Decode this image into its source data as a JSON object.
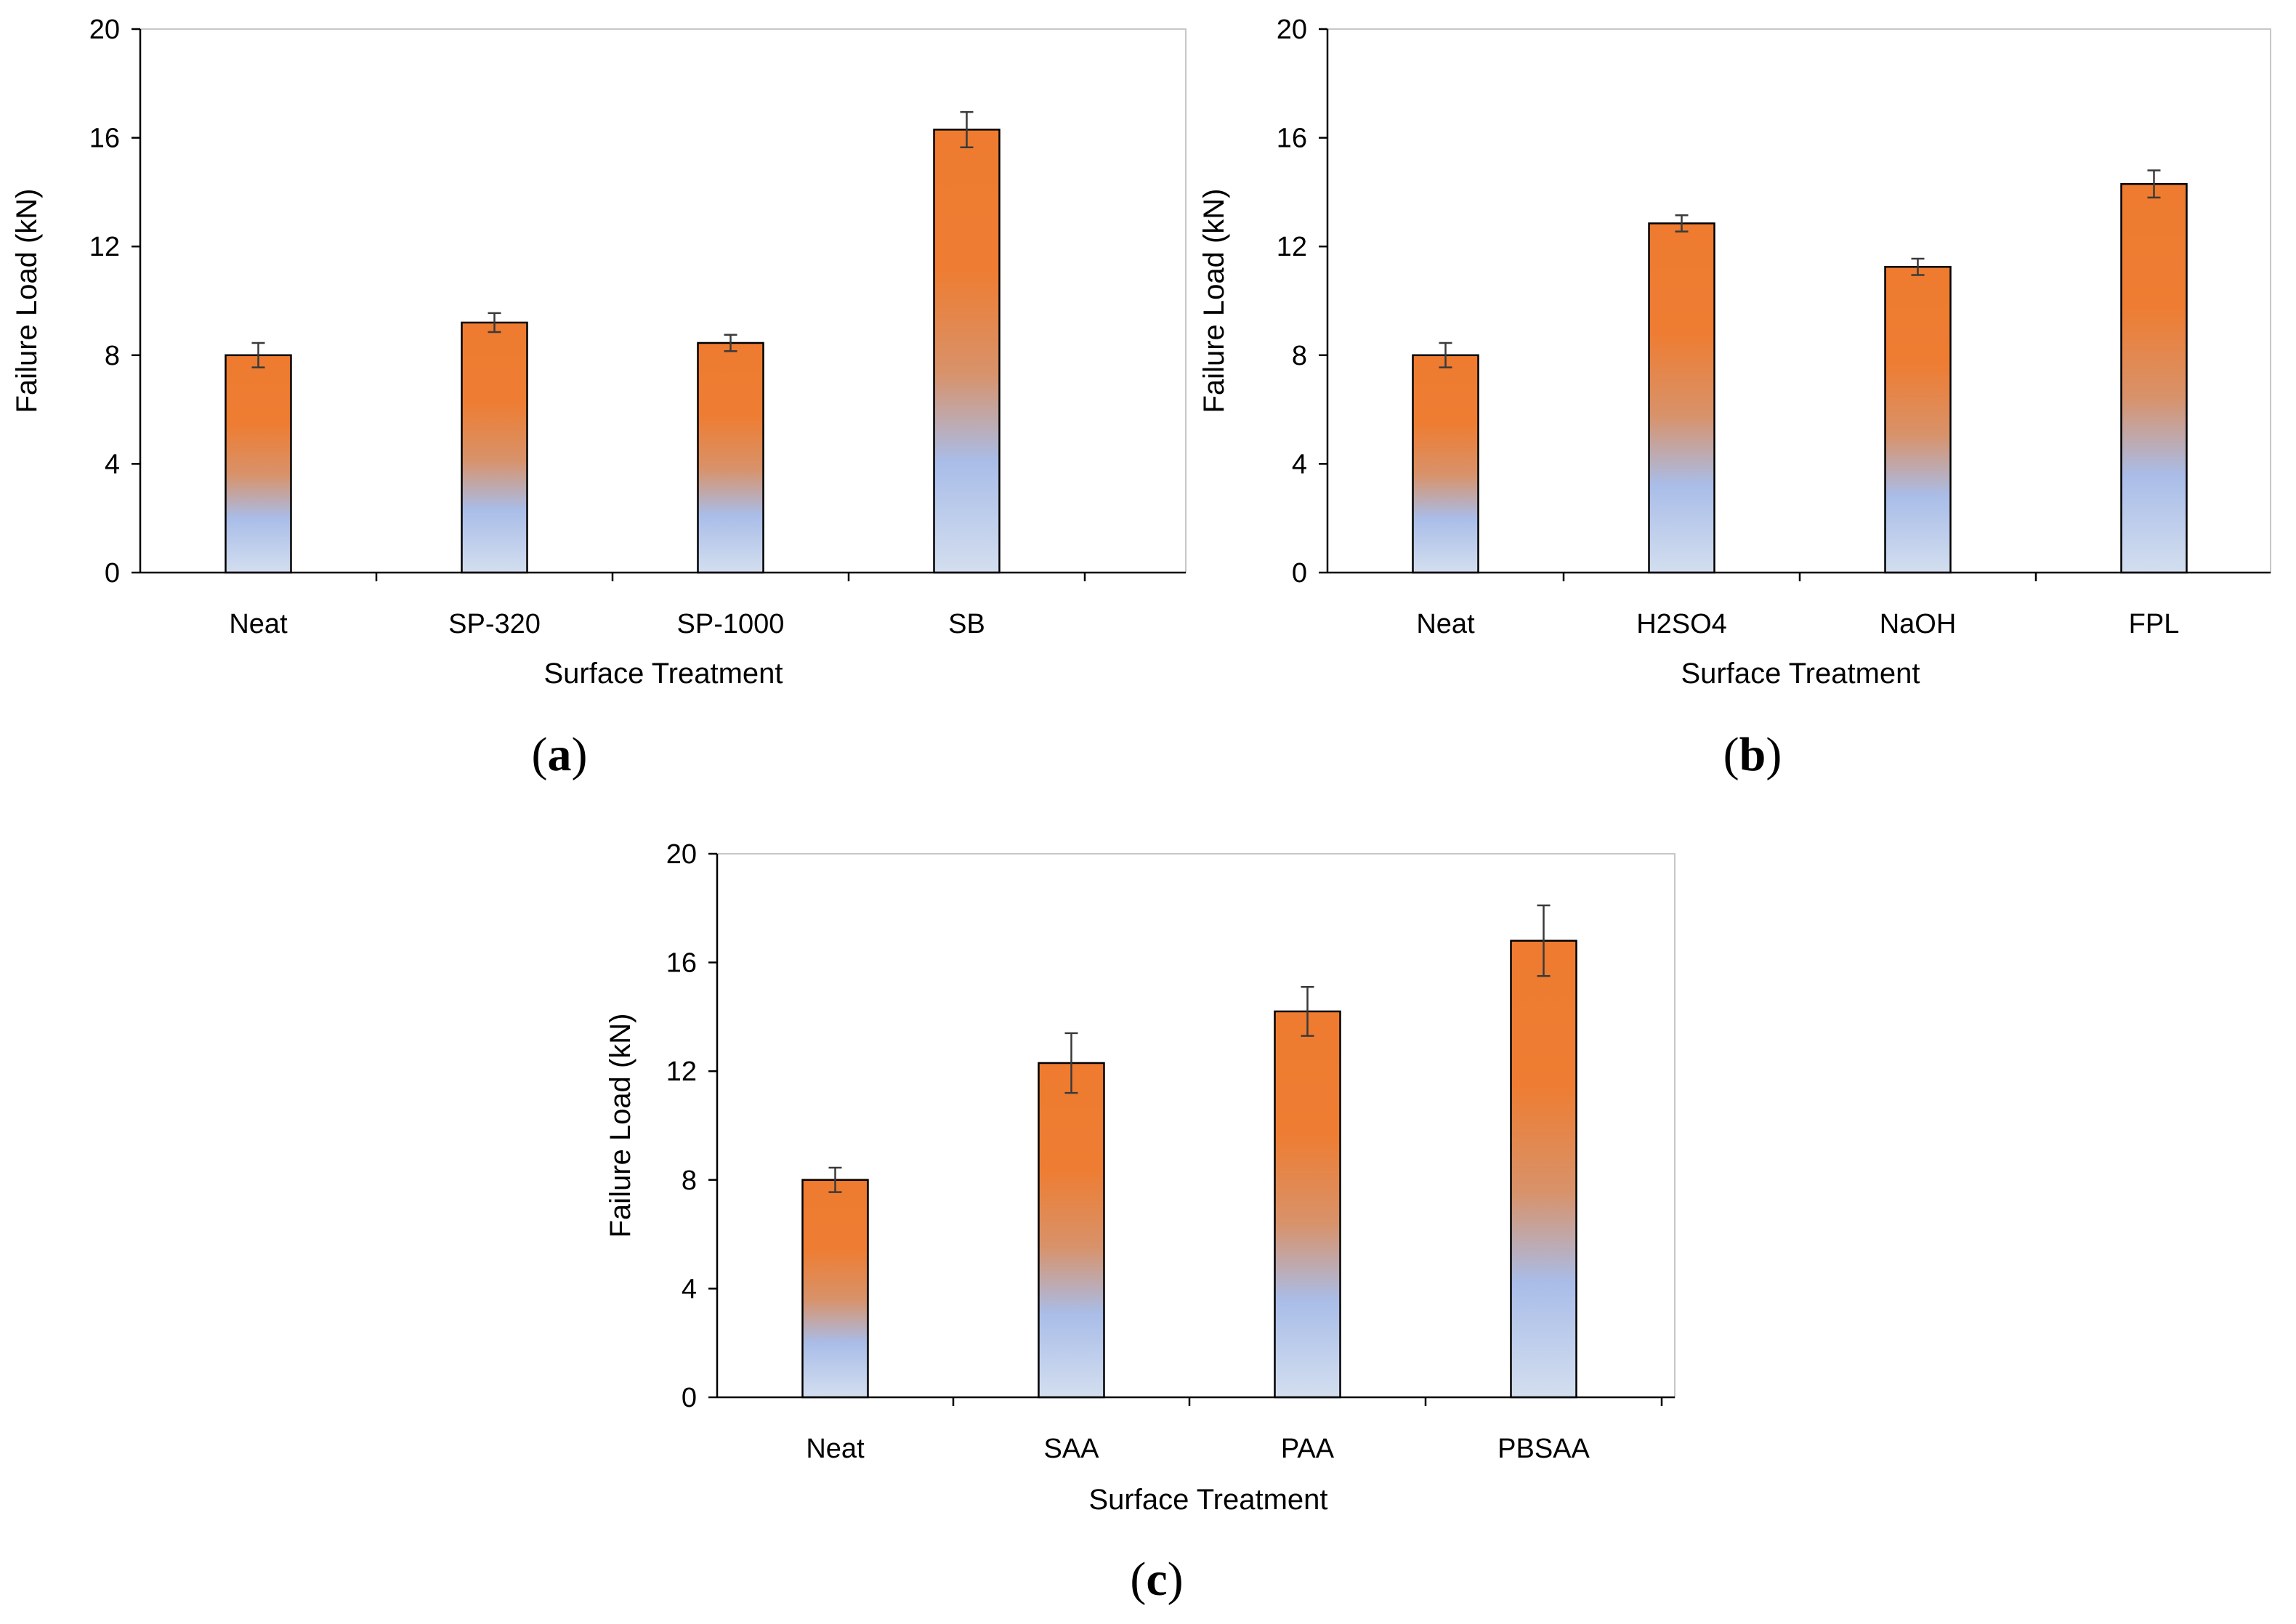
{
  "colors": {
    "bar_top": "#ee7b2f",
    "bar_mid": "#d8926a",
    "bar_low": "#a9bde8",
    "bar_bottom": "#d3deef"
  },
  "chart_data": [
    {
      "id": "a",
      "type": "bar",
      "panel_label": "a",
      "categories": [
        "Neat",
        "SP-320",
        "SP-1000",
        "SB"
      ],
      "values": [
        8.0,
        9.2,
        8.45,
        16.3
      ],
      "errors": [
        0.45,
        0.35,
        0.3,
        0.65
      ],
      "xlabel": "Surface Treatment",
      "ylabel": "Failure Load (kN)",
      "ylim": [
        0,
        20
      ],
      "yticks": [
        "0",
        "4",
        "8",
        "12",
        "16",
        "20"
      ]
    },
    {
      "id": "b",
      "type": "bar",
      "panel_label": "b",
      "categories": [
        "Neat",
        "H2SO4",
        "NaOH",
        "FPL"
      ],
      "values": [
        8.0,
        12.85,
        11.25,
        14.3
      ],
      "errors": [
        0.45,
        0.3,
        0.3,
        0.5
      ],
      "xlabel": "Surface Treatment",
      "ylabel": "Failure Load (kN)",
      "ylim": [
        0,
        20
      ],
      "yticks": [
        "0",
        "4",
        "8",
        "12",
        "16",
        "20"
      ]
    },
    {
      "id": "c",
      "type": "bar",
      "panel_label": "c",
      "categories": [
        "Neat",
        "SAA",
        "PAA",
        "PBSAA"
      ],
      "values": [
        8.0,
        12.3,
        14.2,
        16.8
      ],
      "errors": [
        0.45,
        1.1,
        0.9,
        1.3
      ],
      "xlabel": "Surface Treatment",
      "ylabel": "Failure Load (kN)",
      "ylim": [
        0,
        20
      ],
      "yticks": [
        "0",
        "4",
        "8",
        "12",
        "16",
        "20"
      ]
    }
  ]
}
